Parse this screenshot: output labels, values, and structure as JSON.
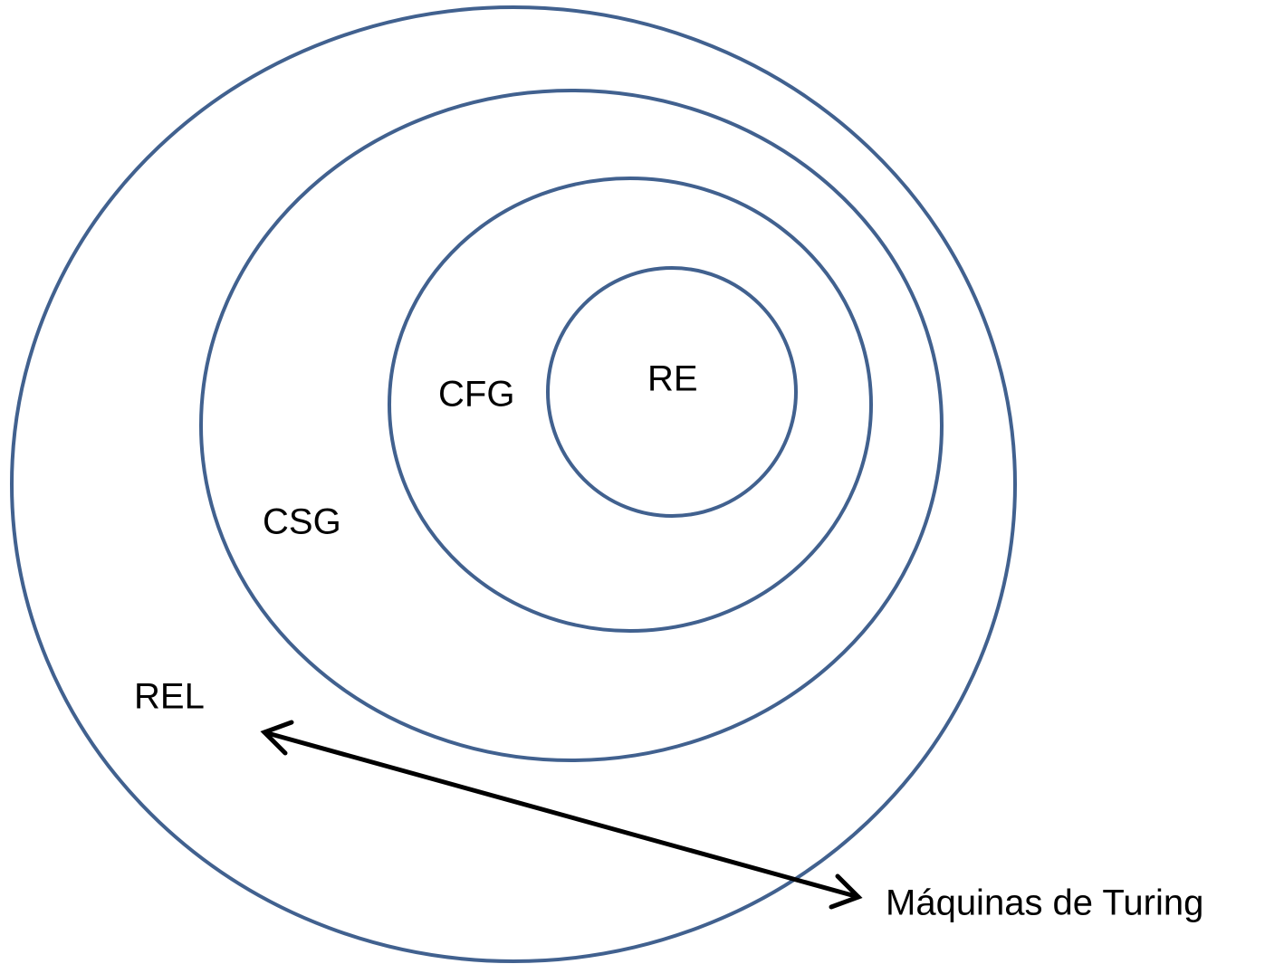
{
  "nodes": [
    {
      "label": "REL"
    },
    {
      "label": "CSG"
    },
    {
      "label": "CFG"
    },
    {
      "label": "RE"
    }
  ],
  "annotation": {
    "label": "Máquinas de Turing"
  }
}
